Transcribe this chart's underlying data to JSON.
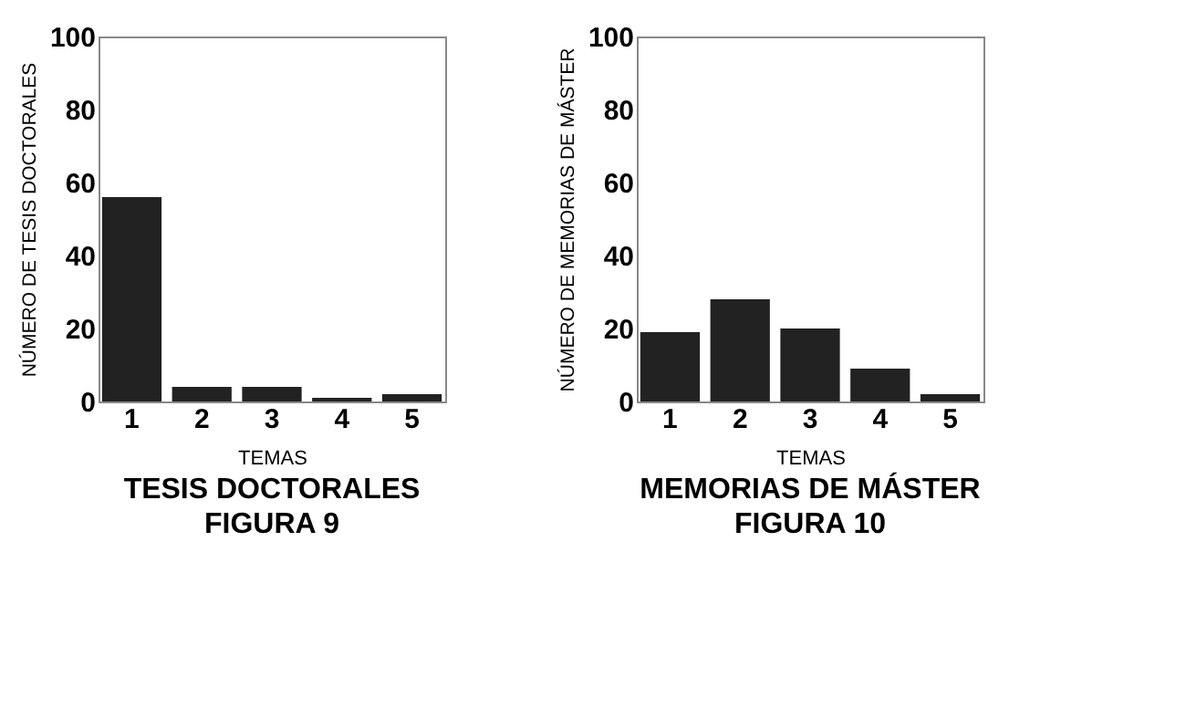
{
  "chart_data": [
    {
      "type": "bar",
      "title": "TESIS DOCTORALES",
      "subtitle": "FIGURA 9",
      "xlabel": "TEMAS",
      "ylabel": "NÚMERO DE TESIS DOCTORALES",
      "categories": [
        "1",
        "2",
        "3",
        "4",
        "5"
      ],
      "values": [
        56,
        4,
        4,
        1,
        2
      ],
      "color": "#222222",
      "ylim": [
        0,
        100
      ],
      "yticks": [
        0,
        20,
        40,
        60,
        80,
        100
      ],
      "grid": false
    },
    {
      "type": "bar",
      "title": "MEMORIAS DE MÁSTER",
      "subtitle": "FIGURA 10",
      "xlabel": "TEMAS",
      "ylabel": "NÚMERO DE MEMORIAS DE MÁSTER",
      "categories": [
        "1",
        "2",
        "3",
        "4",
        "5"
      ],
      "values": [
        19,
        28,
        20,
        9,
        2
      ],
      "color": "#222222",
      "ylim": [
        0,
        100
      ],
      "yticks": [
        0,
        20,
        40,
        60,
        80,
        100
      ],
      "grid": false
    }
  ]
}
